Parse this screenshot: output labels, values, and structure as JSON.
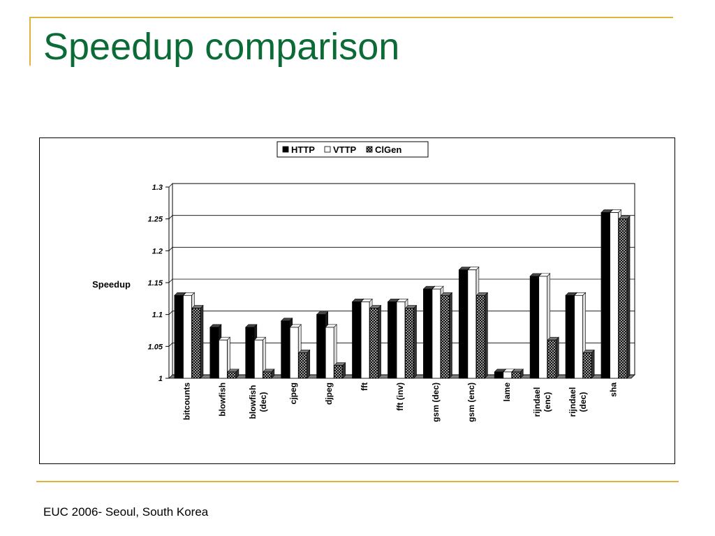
{
  "slide": {
    "title": "Speedup comparison",
    "footer": "EUC 2006- Seoul, South Korea"
  },
  "colors": {
    "title": "#0b6b36",
    "rule": "#e0b33a",
    "http": "#000000",
    "vttp": "#ffffff",
    "clgen": "#333333"
  },
  "chart_data": {
    "type": "bar",
    "title": "",
    "ylabel": "Speedup",
    "xlabel": "",
    "ylim": [
      1,
      1.3
    ],
    "yticks": [
      "1",
      "1.05",
      "1.1",
      "1.15",
      "1.2",
      "1.25",
      "1.3"
    ],
    "grid": true,
    "legend": "top-center",
    "categories": [
      [
        "bitcounts"
      ],
      [
        "blowfish"
      ],
      [
        "blowfish",
        "(dec)"
      ],
      [
        "cjpeg"
      ],
      [
        "djpeg"
      ],
      [
        "fft"
      ],
      [
        "fft (inv)"
      ],
      [
        "gsm (dec)"
      ],
      [
        "gsm (enc)"
      ],
      [
        "lame"
      ],
      [
        "rijndael",
        "(enc)"
      ],
      [
        "rijndael",
        "(dec)"
      ],
      [
        "sha"
      ]
    ],
    "series": [
      {
        "name": "HTTP",
        "pattern": "solid-black",
        "values": [
          1.13,
          1.08,
          1.08,
          1.09,
          1.1,
          1.12,
          1.12,
          1.14,
          1.17,
          1.01,
          1.16,
          1.13,
          1.26
        ]
      },
      {
        "name": "VTTP",
        "pattern": "white",
        "values": [
          1.13,
          1.06,
          1.06,
          1.08,
          1.08,
          1.12,
          1.12,
          1.14,
          1.17,
          1.01,
          1.16,
          1.13,
          1.26
        ]
      },
      {
        "name": "ClGen",
        "pattern": "checkered-dark",
        "values": [
          1.11,
          1.01,
          1.01,
          1.04,
          1.02,
          1.11,
          1.11,
          1.13,
          1.13,
          1.01,
          1.06,
          1.04,
          1.25
        ]
      }
    ]
  }
}
